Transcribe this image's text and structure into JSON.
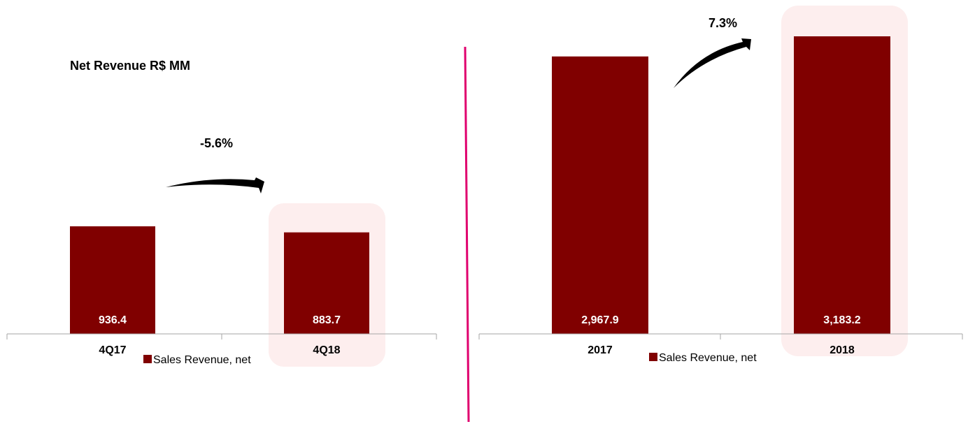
{
  "chart_data": [
    {
      "type": "bar",
      "title": "Net Revenue R$ MM",
      "categories": [
        "4Q17",
        "4Q18"
      ],
      "series": [
        {
          "name": "Sales Revenue, net",
          "values": [
            936.4,
            883.7
          ]
        }
      ],
      "data_labels": [
        "936.4",
        "883.7"
      ],
      "growth_label": "-5.6%",
      "highlight_category": "4Q18",
      "legend_label": "Sales Revenue, net"
    },
    {
      "type": "bar",
      "title": "",
      "categories": [
        "2017",
        "2018"
      ],
      "series": [
        {
          "name": "Sales Revenue, net",
          "values": [
            2967.9,
            3183.2
          ]
        }
      ],
      "data_labels": [
        "2,967.9",
        "3,183.2"
      ],
      "growth_label": "7.3%",
      "highlight_category": "2018",
      "legend_label": "Sales Revenue, net"
    }
  ],
  "colors": {
    "bar": "#800000",
    "highlight": "#fdeeee",
    "divider": "#e0006e",
    "axis": "#a6a6a6"
  }
}
